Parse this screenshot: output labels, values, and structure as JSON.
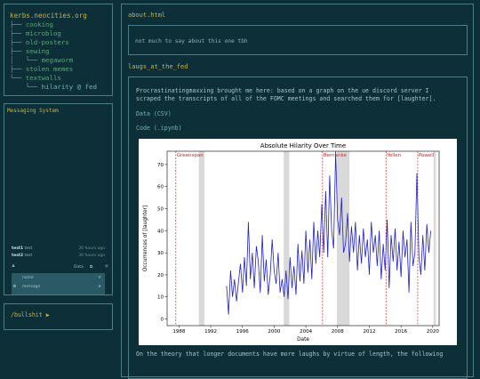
{
  "sidebar": {
    "site_title": "kerbs.neocities.org",
    "tree": [
      {
        "prefix": "├── ",
        "label": "cooking",
        "color": "green"
      },
      {
        "prefix": "├── ",
        "label": "microblog",
        "color": "green"
      },
      {
        "prefix": "├── ",
        "label": "old-posters",
        "color": "green"
      },
      {
        "prefix": "├── ",
        "label": "sewing",
        "color": "green"
      },
      {
        "prefix": "│   └── ",
        "label": "megaworm",
        "color": "green"
      },
      {
        "prefix": "├── ",
        "label": "stolen memes",
        "color": "green"
      },
      {
        "prefix": "└── ",
        "label": "textwalls",
        "color": "green"
      },
      {
        "prefix": "    └── ",
        "label": "hilarity @ fed",
        "color": "teal"
      }
    ]
  },
  "messaging": {
    "title": "Messaging System",
    "messages": [
      {
        "user": "test1",
        "text": "test",
        "time": "30 hours ago"
      },
      {
        "user": "test2",
        "text": "test",
        "time": "30 hours ago"
      }
    ],
    "toolbar_label": "Data",
    "name_placeholder": "name",
    "message_placeholder": "message"
  },
  "bullshit": {
    "label": "/bullshit ▶"
  },
  "main": {
    "about_title": "about.html",
    "about_text": "not much to say about this one tbh",
    "post_title": "laugs_at_the_fed",
    "post_intro": "Procrastinatingmaxxing brought me here: based on a graph on the ue discord server I scraped the transcripts of all of the FOMC meetings and searched them for [laughter].",
    "link_data": "Data (CSV)",
    "link_code": "Code (.ipynb)",
    "post_outro": "On the theory that longer documents have more laughs by virtue of length, the following"
  },
  "chart_data": {
    "type": "line",
    "title": "Absolute Hilarity Over Time",
    "xlabel": "Date",
    "ylabel": "Occurrences of [laughter]",
    "xlim": [
      1986.5,
      2020.8
    ],
    "ylim": [
      -3,
      76
    ],
    "xticks": [
      1988,
      1992,
      1996,
      2000,
      2004,
      2008,
      2012,
      2016,
      2020
    ],
    "yticks": [
      0,
      10,
      20,
      30,
      40,
      50,
      60,
      70
    ],
    "line_color": "#1f1fd0",
    "recessions": [
      [
        1990.5,
        1991.2
      ],
      [
        2001.2,
        2001.9
      ],
      [
        2007.9,
        2009.5
      ],
      [
        2020.1,
        2020.4
      ]
    ],
    "chairs": [
      {
        "name": "Greenspan",
        "x": 1987.6
      },
      {
        "name": "Bernanke",
        "x": 2006.1
      },
      {
        "name": "Yellen",
        "x": 2014.1
      },
      {
        "name": "Powell",
        "x": 2018.1
      }
    ],
    "series": [
      {
        "x": [
          1994.0,
          1994.25,
          1994.5,
          1994.75,
          1995.0,
          1995.25,
          1995.5,
          1995.75,
          1996.0,
          1996.25,
          1996.5,
          1996.75,
          1997.0,
          1997.25,
          1997.5,
          1997.75,
          1998.0,
          1998.25,
          1998.5,
          1998.75,
          1999.0,
          1999.25,
          1999.5,
          1999.75,
          2000.0,
          2000.25,
          2000.5,
          2000.75,
          2001.0,
          2001.25,
          2001.5,
          2001.75,
          2002.0,
          2002.25,
          2002.5,
          2002.75,
          2003.0,
          2003.25,
          2003.5,
          2003.75,
          2004.0,
          2004.25,
          2004.5,
          2004.75,
          2005.0,
          2005.25,
          2005.5,
          2005.75,
          2006.0,
          2006.25,
          2006.5,
          2006.75,
          2007.0,
          2007.25,
          2007.5,
          2007.75,
          2008.0,
          2008.25,
          2008.5,
          2008.75,
          2009.0,
          2009.25,
          2009.5,
          2009.75,
          2010.0,
          2010.25,
          2010.5,
          2010.75,
          2011.0,
          2011.25,
          2011.5,
          2011.75,
          2012.0,
          2012.25,
          2012.5,
          2012.75,
          2013.0,
          2013.25,
          2013.5,
          2013.75,
          2014.0,
          2014.25,
          2014.5,
          2014.75,
          2015.0,
          2015.25,
          2015.5,
          2015.75,
          2016.0,
          2016.25,
          2016.5,
          2016.75,
          2017.0,
          2017.25,
          2017.5,
          2017.75,
          2018.0,
          2018.25,
          2018.5,
          2018.75,
          2019.0,
          2019.25,
          2019.5,
          2019.75
        ],
        "y": [
          15,
          2,
          22,
          10,
          18,
          8,
          17,
          25,
          12,
          28,
          15,
          44,
          18,
          30,
          14,
          33,
          26,
          12,
          38,
          17,
          27,
          11,
          20,
          36,
          22,
          16,
          30,
          12,
          18,
          10,
          22,
          9,
          28,
          14,
          24,
          11,
          34,
          17,
          31,
          16,
          40,
          21,
          36,
          18,
          44,
          25,
          40,
          28,
          52,
          30,
          58,
          28,
          65,
          40,
          32,
          76,
          45,
          38,
          55,
          30,
          34,
          48,
          26,
          42,
          30,
          44,
          22,
          38,
          25,
          41,
          28,
          36,
          20,
          44,
          30,
          38,
          24,
          40,
          18,
          34,
          22,
          45,
          14,
          38,
          26,
          41,
          22,
          35,
          19,
          40,
          28,
          36,
          12,
          44,
          24,
          30,
          66,
          28,
          20,
          38,
          22,
          43,
          30,
          40
        ]
      }
    ]
  }
}
